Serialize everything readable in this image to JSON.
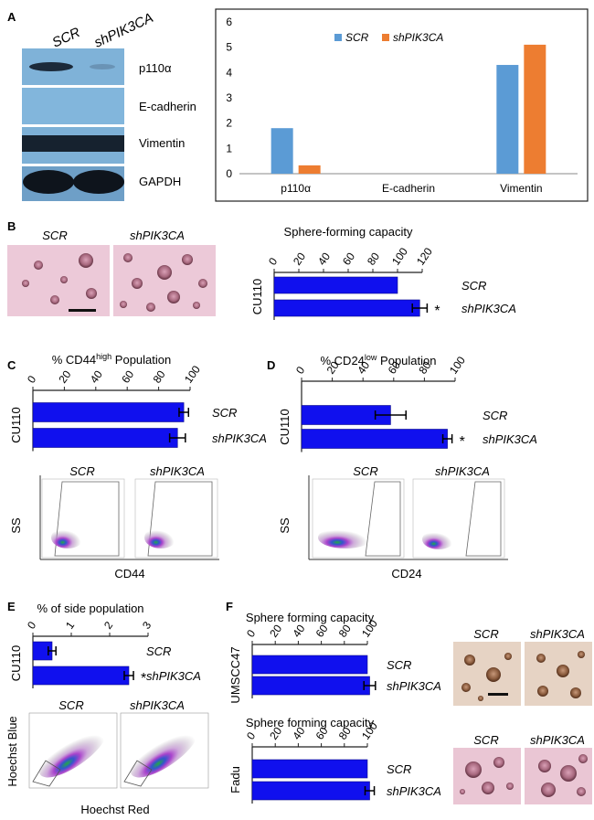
{
  "panel_labels": [
    "A",
    "B",
    "C",
    "D",
    "E",
    "F"
  ],
  "blot": {
    "lanes": [
      "SCR",
      "shPIK3CA"
    ],
    "bands": [
      "p110α",
      "E-cadherin",
      "Vimentin",
      "GAPDH"
    ]
  },
  "images": {
    "b": [
      "SCR",
      "shPIK3CA"
    ],
    "c": [
      "SCR",
      "shPIK3CA"
    ],
    "d": [
      "SCR",
      "shPIK3CA"
    ],
    "e": [
      "SCR",
      "shPIK3CA"
    ],
    "f1": [
      "SCR",
      "shPIK3CA"
    ],
    "f2": [
      "SCR",
      "shPIK3CA"
    ]
  },
  "flow_axes": {
    "c": {
      "x": "CD44",
      "y": "SS"
    },
    "d": {
      "x": "CD24",
      "y": "SS"
    },
    "e": {
      "x": "Hoechst Red",
      "y": "Hoechst Blue"
    }
  },
  "chart_data": [
    {
      "id": "a",
      "type": "bar",
      "categories": [
        "p110α",
        "E-cadherin",
        "Vimentin"
      ],
      "series": [
        {
          "name": "SCR",
          "values": [
            1.8,
            0,
            4.3
          ],
          "color": "#5b9bd5"
        },
        {
          "name": "shPIK3CA",
          "values": [
            0.33,
            0,
            5.1
          ],
          "color": "#ed7d31"
        }
      ],
      "ylim": [
        0,
        6
      ],
      "yticks": [
        "0",
        "1",
        "2",
        "3",
        "4",
        "5",
        "6"
      ],
      "legend": "top-center",
      "title": "",
      "xlabel": "",
      "ylabel": ""
    },
    {
      "id": "b",
      "type": "bar",
      "orientation": "horizontal",
      "title": "Sphere-forming capacity",
      "cell_line": "CU110",
      "categories": [
        "SCR",
        "shPIK3CA"
      ],
      "values": [
        100,
        118
      ],
      "errors": [
        0,
        6
      ],
      "significant": [
        false,
        true
      ],
      "star": "*",
      "xlim": [
        0,
        120
      ],
      "xticks": [
        "0",
        "20",
        "40",
        "60",
        "80",
        "100",
        "120"
      ],
      "color": "#1010ee"
    },
    {
      "id": "c",
      "type": "bar",
      "orientation": "horizontal",
      "title_prefix": "% CD44",
      "title_sup": "high",
      "title_suffix": " Population",
      "cell_line": "CU110",
      "categories": [
        "SCR",
        "shPIK3CA"
      ],
      "values": [
        96,
        92
      ],
      "errors": [
        3,
        5
      ],
      "significant": [
        false,
        false
      ],
      "star": "*",
      "xlim": [
        0,
        100
      ],
      "xticks": [
        "0",
        "20",
        "40",
        "60",
        "80",
        "100"
      ],
      "color": "#1010ee"
    },
    {
      "id": "d",
      "type": "bar",
      "orientation": "horizontal",
      "title_prefix": "% CD24",
      "title_sup": "low",
      "title_suffix": " Population",
      "cell_line": "CU110",
      "categories": [
        "SCR",
        "shPIK3CA"
      ],
      "values": [
        58,
        95
      ],
      "errors": [
        10,
        3
      ],
      "significant": [
        false,
        true
      ],
      "star": "*",
      "xlim": [
        0,
        100
      ],
      "xticks": [
        "0",
        "20",
        "40",
        "60",
        "80",
        "100"
      ],
      "color": "#1010ee"
    },
    {
      "id": "e",
      "type": "bar",
      "orientation": "horizontal",
      "title": "% of side population",
      "cell_line": "CU110",
      "categories": [
        "SCR",
        "shPIK3CA"
      ],
      "values": [
        0.5,
        2.5
      ],
      "errors": [
        0.1,
        0.12
      ],
      "significant": [
        false,
        true
      ],
      "star": "*",
      "xlim": [
        0,
        3
      ],
      "xticks": [
        "0",
        "1",
        "2",
        "3"
      ],
      "color": "#1010ee"
    },
    {
      "id": "f1",
      "type": "bar",
      "orientation": "horizontal",
      "title": "Sphere forming capacity",
      "cell_line": "UMSCC47",
      "categories": [
        "SCR",
        "shPIK3CA"
      ],
      "values": [
        100,
        102
      ],
      "errors": [
        0,
        5
      ],
      "significant": [
        false,
        false
      ],
      "star": "*",
      "xlim": [
        0,
        100
      ],
      "xticks": [
        "0",
        "20",
        "40",
        "60",
        "80",
        "100"
      ],
      "color": "#1010ee"
    },
    {
      "id": "f2",
      "type": "bar",
      "orientation": "horizontal",
      "title": "Sphere forming capacity",
      "cell_line": "Fadu",
      "categories": [
        "SCR",
        "shPIK3CA"
      ],
      "values": [
        100,
        102
      ],
      "errors": [
        0,
        4
      ],
      "significant": [
        false,
        false
      ],
      "star": "*",
      "xlim": [
        0,
        100
      ],
      "xticks": [
        "0",
        "20",
        "40",
        "60",
        "80",
        "100"
      ],
      "color": "#1010ee"
    }
  ]
}
